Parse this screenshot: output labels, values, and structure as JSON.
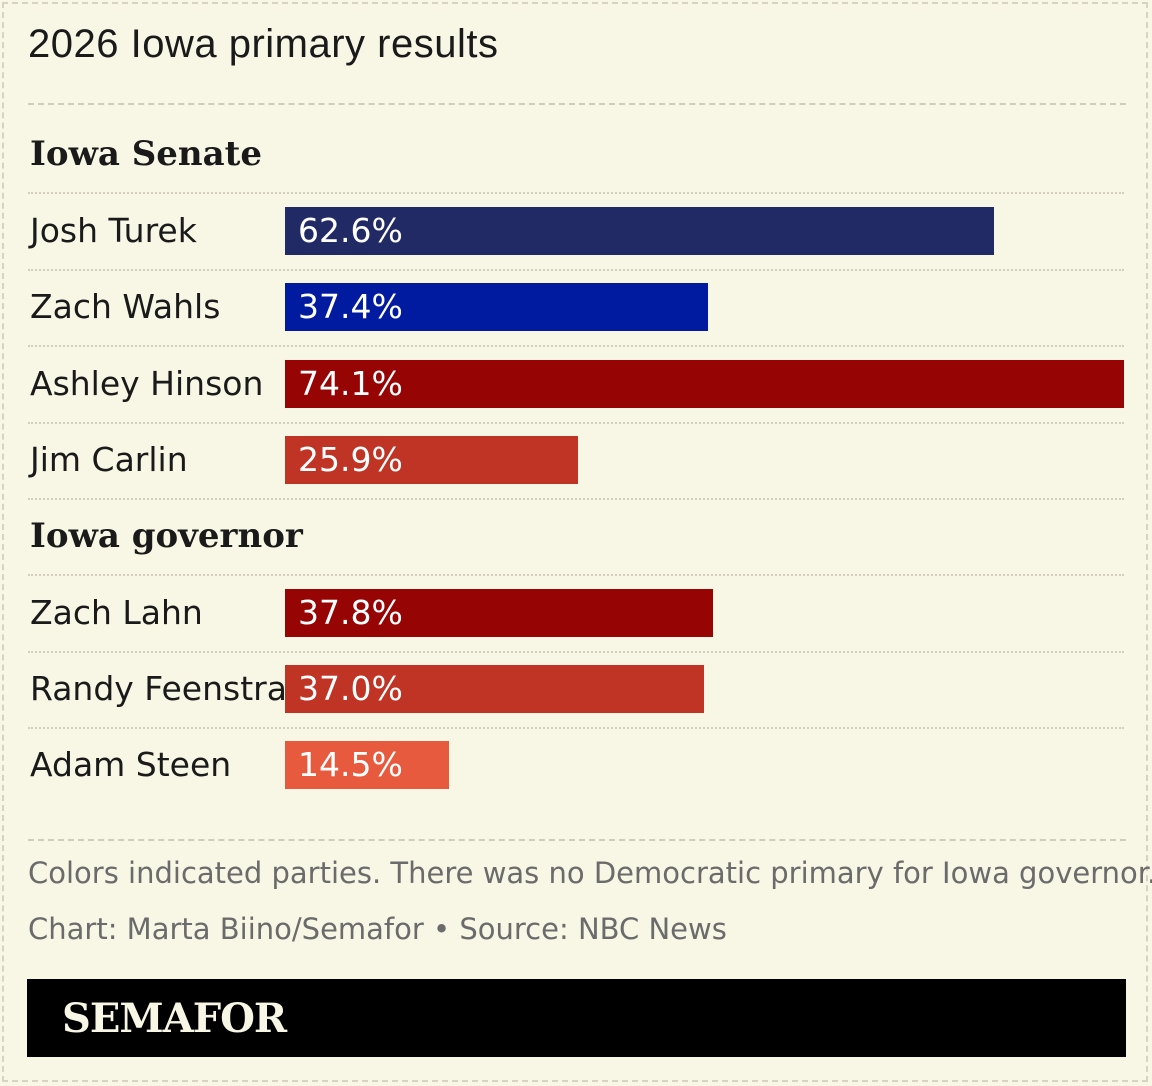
{
  "chart_data": {
    "type": "bar",
    "title": "2026 Iowa primary results",
    "xlim": [
      0,
      74.1
    ],
    "sections": [
      {
        "label": "Iowa Senate",
        "bars": [
          {
            "name": "Josh Turek",
            "value": 62.6,
            "label": "62.6%",
            "color": "#222a66"
          },
          {
            "name": "Zach Wahls",
            "value": 37.4,
            "label": "37.4%",
            "color": "#001aa0"
          },
          {
            "name": "Ashley Hinson",
            "value": 74.1,
            "label": "74.1%",
            "color": "#960404"
          },
          {
            "name": "Jim Carlin",
            "value": 25.9,
            "label": "25.9%",
            "color": "#c03425"
          }
        ]
      },
      {
        "label": "Iowa governor",
        "bars": [
          {
            "name": "Zach Lahn",
            "value": 37.8,
            "label": "37.8%",
            "color": "#960404"
          },
          {
            "name": "Randy Feenstra",
            "value": 37.0,
            "label": "37.0%",
            "color": "#c03425"
          },
          {
            "name": "Adam Steen",
            "value": 14.5,
            "label": "14.5%",
            "color": "#e85a3e"
          }
        ]
      }
    ]
  },
  "notes": {
    "line1": "Colors indicated parties. There was no Democratic primary for Iowa governor.",
    "line2": "Chart: Marta Biino/Semafor • Source: NBC News"
  },
  "brand": "SEMAFOR"
}
